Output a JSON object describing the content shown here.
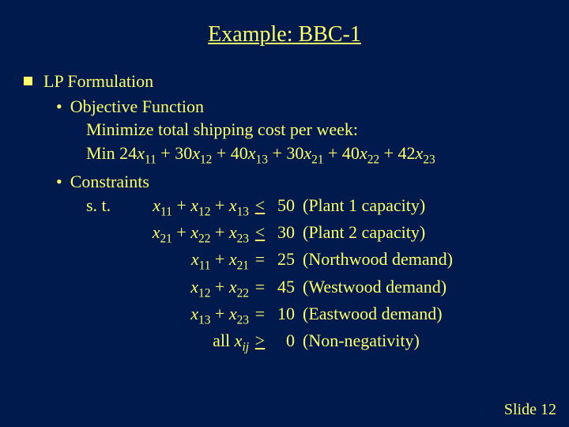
{
  "colors": {
    "background": "#001a4d",
    "text": "#ffff66"
  },
  "typography": {
    "family": "Times New Roman",
    "title_fontsize": 28,
    "body_fontsize": 22
  },
  "title": "Example:  BBC-1",
  "heading": "LP Formulation",
  "objective": {
    "label": "Objective Function",
    "line1": "Minimize total shipping cost per week:",
    "line2_pre": "Min  24",
    "v11": "x",
    "s11": "11",
    "p2": " + 30",
    "v12": "x",
    "s12": "12",
    "p3": " + 40",
    "v13": "x",
    "s13": "13",
    "p4": " + 30",
    "v21": "x",
    "s21": "21",
    "p5": " + 40",
    "v22": "x",
    "s22": "22",
    "p6": " + 42",
    "v23": "x",
    "s23": "23"
  },
  "constraints_label": "Constraints",
  "st": "s. t.",
  "constraints": [
    {
      "lhs_a": "x",
      "sa": "11",
      "op1": " + ",
      "lhs_b": "x",
      "sb": "12",
      "op2": " + ",
      "lhs_c": "x",
      "sc": "13",
      "rel": "<",
      "rhs": "50",
      "desc": "(Plant 1 capacity)",
      "three": true
    },
    {
      "lhs_a": "x",
      "sa": "21",
      "op1": " + ",
      "lhs_b": "x",
      "sb": "22",
      "op2": " + ",
      "lhs_c": "x",
      "sc": "23",
      "rel": "<",
      "rhs": "30",
      "desc": "(Plant 2 capacity)",
      "three": true
    },
    {
      "lhs_a": "x",
      "sa": "11",
      "op1": " + ",
      "lhs_b": "x",
      "sb": "21",
      "rel": "=",
      "rhs": "25",
      "desc": "(Northwood demand)",
      "three": false
    },
    {
      "lhs_a": "x",
      "sa": "12",
      "op1": " + ",
      "lhs_b": "x",
      "sb": "22",
      "rel": "=",
      "rhs": "45",
      "desc": "(Westwood demand)",
      "three": false
    },
    {
      "lhs_a": "x",
      "sa": "13",
      "op1": " + ",
      "lhs_b": "x",
      "sb": "23",
      "rel": "=",
      "rhs": "10",
      "desc": "(Eastwood demand)",
      "three": false
    }
  ],
  "nonneg": {
    "all": "all ",
    "x": "x",
    "sub": "ij",
    "rel": ">",
    "rhs": "0",
    "desc": "(Non-negativity)"
  },
  "footer": {
    "label": "Slide",
    "num": "12"
  }
}
